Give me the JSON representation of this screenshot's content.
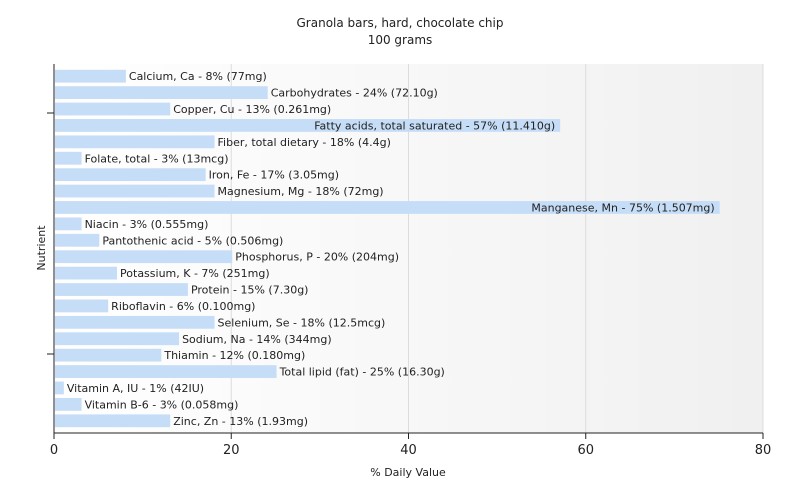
{
  "chart_data": {
    "type": "bar",
    "orientation": "horizontal",
    "title": "Granola bars, hard, chocolate chip",
    "subtitle": "100 grams",
    "xlabel": "% Daily Value",
    "ylabel": "Nutrient",
    "xlim": [
      0,
      80
    ],
    "xticks": [
      "0",
      "20",
      "40",
      "60",
      "80"
    ],
    "grid": true,
    "bar_color": "#c6ddf7",
    "categories": [
      "Calcium, Ca",
      "Carbohydrates",
      "Copper, Cu",
      "Fatty acids, total saturated",
      "Fiber, total dietary",
      "Folate, total",
      "Iron, Fe",
      "Magnesium, Mg",
      "Manganese, Mn",
      "Niacin",
      "Pantothenic acid",
      "Phosphorus, P",
      "Potassium, K",
      "Protein",
      "Riboflavin",
      "Selenium, Se",
      "Sodium, Na",
      "Thiamin",
      "Total lipid (fat)",
      "Vitamin A, IU",
      "Vitamin B-6",
      "Zinc, Zn"
    ],
    "values": [
      8,
      24,
      13,
      57,
      18,
      3,
      17,
      18,
      75,
      3,
      5,
      20,
      7,
      15,
      6,
      18,
      14,
      12,
      25,
      1,
      3,
      13
    ],
    "labels": [
      "Calcium, Ca - 8% (77mg)",
      "Carbohydrates - 24% (72.10g)",
      "Copper, Cu - 13% (0.261mg)",
      "Fatty acids, total saturated - 57% (11.410g)",
      "Fiber, total dietary - 18% (4.4g)",
      "Folate, total - 3% (13mcg)",
      "Iron, Fe - 17% (3.05mg)",
      "Magnesium, Mg - 18% (72mg)",
      "Manganese, Mn - 75% (1.507mg)",
      "Niacin - 3% (0.555mg)",
      "Pantothenic acid - 5% (0.506mg)",
      "Phosphorus, P - 20% (204mg)",
      "Potassium, K - 7% (251mg)",
      "Protein - 15% (7.30g)",
      "Riboflavin - 6% (0.100mg)",
      "Selenium, Se - 18% (12.5mcg)",
      "Sodium, Na - 14% (344mg)",
      "Thiamin - 12% (0.180mg)",
      "Total lipid (fat) - 25% (16.30g)",
      "Vitamin A, IU - 1% (42IU)",
      "Vitamin B-6 - 3% (0.058mg)",
      "Zinc, Zn - 13% (1.93mg)"
    ]
  }
}
